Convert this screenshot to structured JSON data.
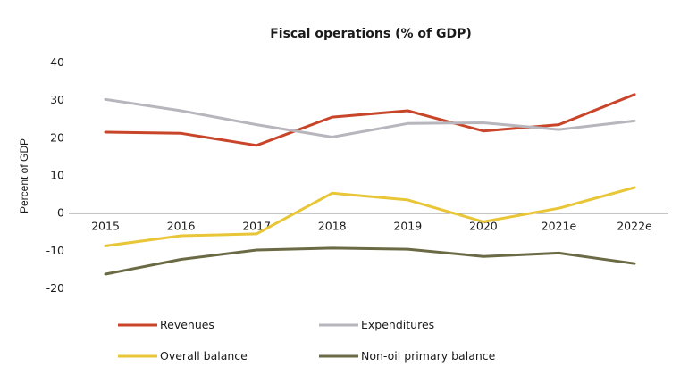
{
  "chart_data": {
    "type": "line",
    "title": "Fiscal operations (% of GDP)",
    "ylabel": "Percent of GDP",
    "xlabel": "",
    "categories": [
      "2015",
      "2016",
      "2017",
      "2018",
      "2019",
      "2020",
      "2021e",
      "2022e"
    ],
    "ylim": [
      -20,
      40
    ],
    "yticks": [
      40,
      30,
      20,
      10,
      0,
      -10,
      -20
    ],
    "ytick_labels": [
      "40",
      "30",
      "20",
      "10",
      "0",
      "-10",
      "-20"
    ],
    "grid": false,
    "legend_position": "bottom",
    "series": [
      {
        "name": "Revenues",
        "color": "#c8452a",
        "values": [
          21.5,
          21.2,
          18.0,
          25.5,
          27.2,
          21.8,
          23.5,
          31.5
        ]
      },
      {
        "name": "Expenditures",
        "color": "#b7b6bd",
        "values": [
          30.2,
          27.2,
          23.5,
          20.2,
          23.8,
          24.0,
          22.2,
          24.5
        ]
      },
      {
        "name": "Overall balance",
        "color": "#e8c637",
        "values": [
          -8.7,
          -6.0,
          -5.5,
          5.3,
          3.5,
          -2.3,
          1.3,
          6.8
        ]
      },
      {
        "name": "Non-oil primary balance",
        "color": "#6a6a45",
        "values": [
          -16.2,
          -12.3,
          -9.8,
          -9.3,
          -9.6,
          -11.5,
          -10.6,
          -13.4
        ]
      }
    ]
  }
}
